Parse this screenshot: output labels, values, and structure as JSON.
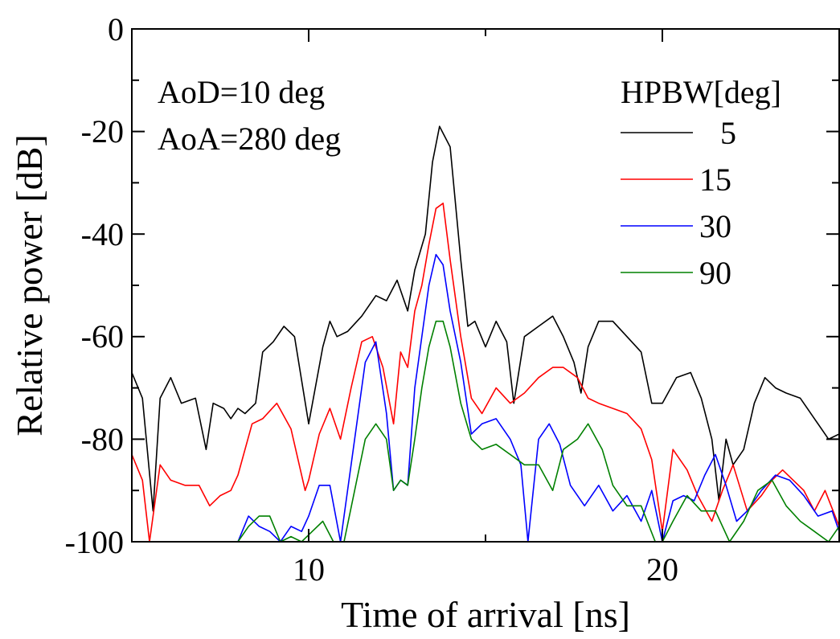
{
  "chart_data": {
    "type": "line",
    "title": "",
    "xlabel": "Time of arrival [ns]",
    "ylabel": "Relative power [dB]",
    "xlim": [
      5,
      25
    ],
    "ylim": [
      -100,
      0
    ],
    "xticks": [
      10,
      20
    ],
    "yticks": [
      0,
      -20,
      -40,
      -60,
      -80,
      -100
    ],
    "xtick_labels": [
      "10",
      "20"
    ],
    "ytick_labels": [
      "0",
      "-20",
      "-40",
      "-60",
      "-80",
      "-100"
    ],
    "annotations": [
      "AoD=10 deg",
      "AoA=280 deg"
    ],
    "legend_title": "HPBW[deg]",
    "legend_position": "top-right",
    "grid": false,
    "series": [
      {
        "name": "5",
        "color": "#000000",
        "x": [
          5.0,
          5.3,
          5.6,
          5.8,
          6.1,
          6.4,
          6.8,
          7.1,
          7.3,
          7.6,
          7.8,
          8.0,
          8.2,
          8.5,
          8.7,
          9.0,
          9.3,
          9.6,
          10.0,
          10.4,
          10.6,
          10.8,
          11.1,
          11.5,
          11.9,
          12.2,
          12.5,
          12.8,
          13.0,
          13.3,
          13.5,
          13.7,
          14.0,
          14.3,
          14.5,
          14.7,
          15.0,
          15.3,
          15.6,
          15.8,
          16.1,
          16.5,
          16.9,
          17.2,
          17.5,
          17.7,
          17.9,
          18.2,
          18.6,
          19.0,
          19.4,
          19.7,
          20.0,
          20.4,
          20.8,
          21.1,
          21.4,
          21.6,
          21.8,
          22.0,
          22.3,
          22.6,
          22.9,
          23.2,
          23.5,
          23.9,
          24.3,
          24.7,
          25.0
        ],
        "y": [
          -67,
          -72,
          -94,
          -72,
          -68,
          -73,
          -72,
          -82,
          -73,
          -74,
          -76,
          -74,
          -75,
          -73,
          -63,
          -61,
          -58,
          -60,
          -77,
          -62,
          -57,
          -60,
          -59,
          -56,
          -52,
          -53,
          -49,
          -55,
          -47,
          -40,
          -26,
          -19,
          -23,
          -45,
          -58,
          -57,
          -62,
          -57,
          -61,
          -73,
          -60,
          -58,
          -56,
          -60,
          -65,
          -71,
          -62,
          -57,
          -57,
          -60,
          -63,
          -73,
          -73,
          -68,
          -67,
          -72,
          -80,
          -92,
          -80,
          -85,
          -82,
          -73,
          -68,
          -70,
          -71,
          -72,
          -76,
          -80,
          -79
        ]
      },
      {
        "name": "15",
        "color": "#ff0000",
        "x": [
          5.0,
          5.3,
          5.5,
          5.8,
          6.1,
          6.5,
          6.9,
          7.2,
          7.5,
          7.8,
          8.0,
          8.4,
          8.7,
          9.1,
          9.5,
          9.9,
          10.0,
          10.3,
          10.6,
          10.9,
          11.2,
          11.5,
          11.8,
          12.1,
          12.4,
          12.6,
          12.8,
          13.0,
          13.2,
          13.4,
          13.6,
          13.8,
          14.0,
          14.3,
          14.6,
          14.9,
          15.3,
          15.7,
          16.1,
          16.5,
          16.9,
          17.2,
          17.6,
          17.9,
          18.2,
          18.6,
          19.0,
          19.4,
          19.7,
          20.0,
          20.3,
          20.7,
          21.0,
          21.4,
          21.7,
          22.0,
          22.4,
          22.8,
          23.1,
          23.4,
          23.7,
          24.0,
          24.3,
          24.6,
          25.0
        ],
        "y": [
          -83,
          -88,
          -100,
          -85,
          -88,
          -89,
          -89,
          -93,
          -91,
          -90,
          -87,
          -77,
          -76,
          -73,
          -78,
          -90,
          -88,
          -79,
          -74,
          -80,
          -70,
          -61,
          -60,
          -66,
          -77,
          -63,
          -66,
          -55,
          -50,
          -42,
          -35,
          -34,
          -45,
          -60,
          -72,
          -75,
          -70,
          -73,
          -71,
          -68,
          -66,
          -66,
          -68,
          -72,
          -73,
          -74,
          -75,
          -78,
          -84,
          -98,
          -82,
          -86,
          -91,
          -96,
          -90,
          -85,
          -94,
          -91,
          -88,
          -86,
          -88,
          -90,
          -94,
          -90,
          -97
        ]
      },
      {
        "name": "30",
        "color": "#0000ff",
        "x": [
          8.0,
          8.3,
          8.6,
          8.9,
          9.2,
          9.5,
          9.8,
          10.0,
          10.3,
          10.6,
          10.9,
          11.1,
          11.3,
          11.6,
          11.9,
          12.2,
          12.4,
          12.6,
          12.8,
          13.0,
          13.2,
          13.4,
          13.6,
          13.8,
          14.0,
          14.3,
          14.6,
          14.9,
          15.3,
          15.7,
          16.0,
          16.2,
          16.5,
          16.8,
          17.1,
          17.4,
          17.8,
          18.2,
          18.6,
          19.0,
          19.4,
          19.7,
          20.0,
          20.3,
          20.6,
          20.9,
          21.2,
          21.5,
          21.8,
          22.1,
          22.4,
          22.8,
          23.2,
          23.6,
          24.0,
          24.4,
          24.8,
          25.0
        ],
        "y": [
          -100,
          -95,
          -97,
          -98,
          -100,
          -97,
          -98,
          -95,
          -89,
          -89,
          -100,
          -90,
          -80,
          -65,
          -61,
          -75,
          -90,
          -88,
          -89,
          -70,
          -60,
          -50,
          -44,
          -46,
          -55,
          -65,
          -79,
          -77,
          -76,
          -80,
          -85,
          -100,
          -80,
          -77,
          -81,
          -89,
          -93,
          -89,
          -94,
          -91,
          -96,
          -90,
          -100,
          -92,
          -91,
          -92,
          -87,
          -83,
          -89,
          -96,
          -94,
          -90,
          -87,
          -88,
          -91,
          -95,
          -94,
          -98
        ]
      },
      {
        "name": "90",
        "color": "#008000",
        "x": [
          8.0,
          8.3,
          8.6,
          8.9,
          9.2,
          9.5,
          9.8,
          10.1,
          10.4,
          10.7,
          11.0,
          11.3,
          11.6,
          11.9,
          12.2,
          12.4,
          12.6,
          12.8,
          13.0,
          13.2,
          13.4,
          13.6,
          13.8,
          14.0,
          14.3,
          14.6,
          14.9,
          15.3,
          15.7,
          16.1,
          16.5,
          16.9,
          17.2,
          17.6,
          17.9,
          18.3,
          18.6,
          19.0,
          19.4,
          19.8,
          20.0,
          20.3,
          20.7,
          21.1,
          21.5,
          21.9,
          22.3,
          22.7,
          23.1,
          23.5,
          23.9,
          24.3,
          24.7,
          25.0
        ],
        "y": [
          -100,
          -97,
          -95,
          -95,
          -100,
          -99,
          -100,
          -98,
          -96,
          -100,
          -100,
          -90,
          -80,
          -77,
          -80,
          -90,
          -88,
          -89,
          -80,
          -70,
          -62,
          -57,
          -57,
          -62,
          -73,
          -80,
          -82,
          -81,
          -83,
          -85,
          -85,
          -90,
          -82,
          -80,
          -77,
          -82,
          -89,
          -93,
          -93,
          -100,
          -100,
          -96,
          -91,
          -94,
          -94,
          -100,
          -96,
          -90,
          -88,
          -93,
          -96,
          -98,
          -100,
          -97
        ]
      }
    ]
  }
}
